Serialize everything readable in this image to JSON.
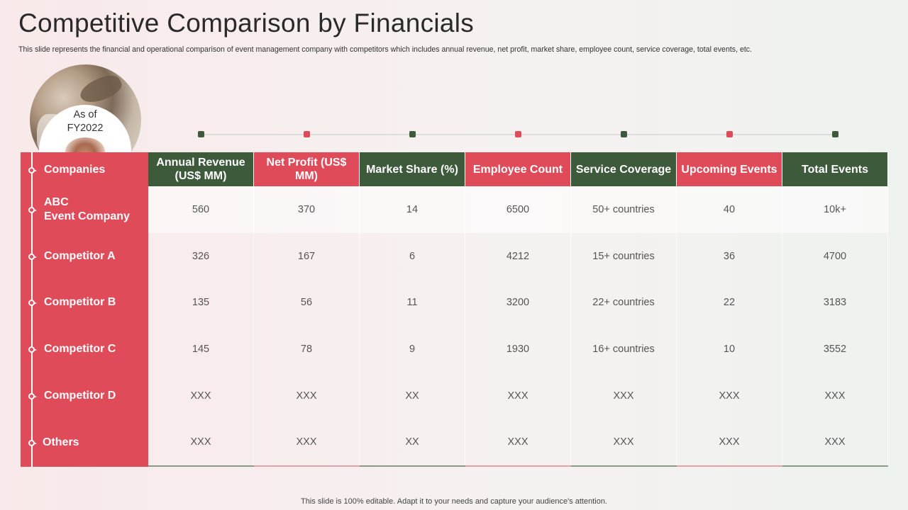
{
  "page": {
    "title": "Competitive Comparison by Financials",
    "subtitle": "This slide represents the financial and operational comparison of event management company with competitors which includes annual revenue, net profit, market share, employee count, service coverage, total events, etc.",
    "badge": {
      "line1": "As of",
      "line2": "FY2022"
    },
    "footer": "This slide is 100% editable. Adapt it to your needs and capture your audience's attention."
  },
  "colors": {
    "green": "#3d5a3b",
    "red": "#e04b5a"
  },
  "table": {
    "row_header_label": "Companies",
    "columns": [
      {
        "label": "Annual Revenue (US$ MM)",
        "color": "green"
      },
      {
        "label": "Net Profit (US$ MM)",
        "color": "red"
      },
      {
        "label": "Market Share (%)",
        "color": "green"
      },
      {
        "label": "Employee Count",
        "color": "red"
      },
      {
        "label": "Service Coverage",
        "color": "green"
      },
      {
        "label": "Upcoming Events",
        "color": "red"
      },
      {
        "label": "Total Events",
        "color": "green"
      }
    ],
    "rows": [
      {
        "label": "ABC Event Company",
        "values": [
          "560",
          "370",
          "14",
          "6500",
          "50+ countries",
          "40",
          "10k+"
        ]
      },
      {
        "label": "Competitor A",
        "values": [
          "326",
          "167",
          "6",
          "4212",
          "15+ countries",
          "36",
          "4700"
        ]
      },
      {
        "label": "Competitor B",
        "values": [
          "135",
          "56",
          "11",
          "3200",
          "22+ countries",
          "22",
          "3183"
        ]
      },
      {
        "label": "Competitor C",
        "values": [
          "145",
          "78",
          "9",
          "1930",
          "16+ countries",
          "10",
          "3552"
        ]
      },
      {
        "label": "Competitor D",
        "values": [
          "XXX",
          "XXX",
          "XX",
          "XXX",
          "XXX",
          "XXX",
          "XXX"
        ]
      },
      {
        "label": "Others",
        "values": [
          "XXX",
          "XXX",
          "XX",
          "XXX",
          "XXX",
          "XXX",
          "XXX"
        ]
      }
    ]
  }
}
